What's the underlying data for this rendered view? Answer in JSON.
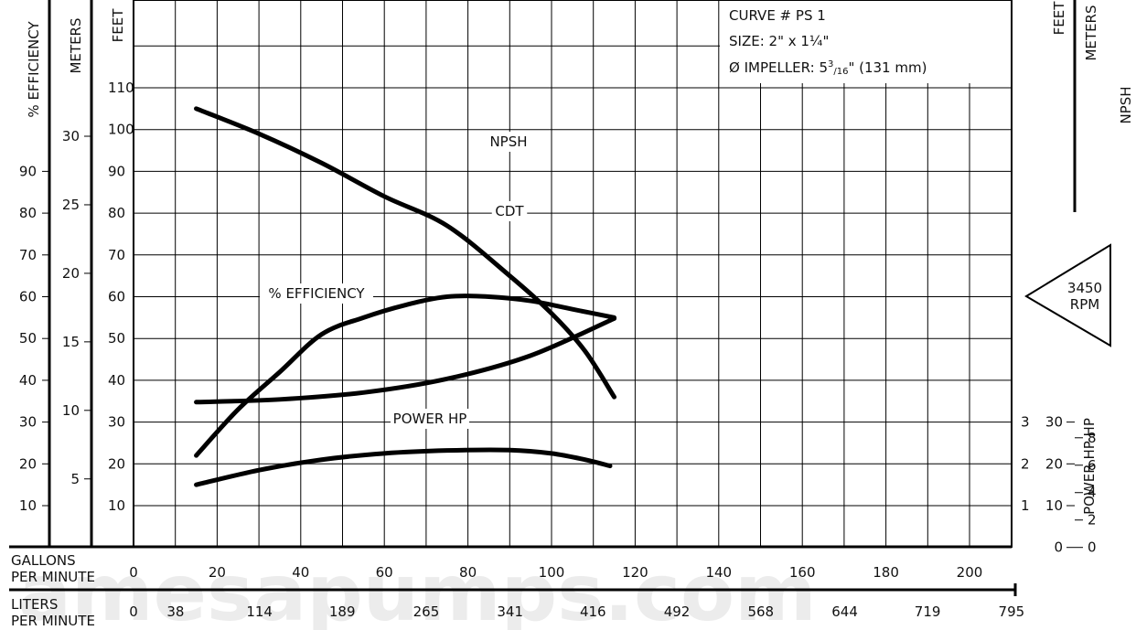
{
  "watermark": "amesapumps.com",
  "chart_data": {
    "type": "line",
    "info": {
      "curve": "CURVE # PS 1",
      "size": "SIZE: 2\" x 1¼\"",
      "impeller_prefix": "Ø IMPELLER: 5",
      "impeller_sup": "3",
      "impeller_sub": "16",
      "impeller_suffix": "\" (131 mm)"
    },
    "rpm": [
      "3450",
      "RPM"
    ],
    "axes": {
      "efficiency_label": "% EFFICIENCY",
      "meters_label": "METERS",
      "feet_label": "FEET",
      "npsh_feet_label": "FEET",
      "npsh_meters_label": "METERS",
      "npsh_label": "NPSH",
      "power_label": "POWER HP HP",
      "gpm_label": [
        "GALLONS",
        "PER MINUTE"
      ],
      "lpm_label": [
        "LITERS",
        "PER MINUTE"
      ]
    },
    "efficiency_ticks": [
      "90",
      "80",
      "70",
      "60",
      "50",
      "40",
      "30",
      "20",
      "10"
    ],
    "meters_ticks": [
      "30",
      "25",
      "20",
      "15",
      "10",
      "5"
    ],
    "feet_ticks": [
      "110",
      "100",
      "90",
      "80",
      "70",
      "60",
      "50",
      "40",
      "30",
      "20",
      "10"
    ],
    "npsh_feet_ticks": [
      "30",
      "20",
      "10",
      "0"
    ],
    "npsh_meters_ticks": [
      "8",
      "6",
      "4",
      "2",
      "0"
    ],
    "power_ticks": [
      "3",
      "2",
      "1"
    ],
    "gpm_ticks": [
      "0",
      "20",
      "40",
      "60",
      "80",
      "100",
      "120",
      "140",
      "160",
      "180",
      "200"
    ],
    "lpm_ticks": [
      "0",
      "38",
      "114",
      "189",
      "265",
      "341",
      "416",
      "492",
      "568",
      "644",
      "719",
      "795"
    ],
    "xlim": [
      0,
      210
    ],
    "ylim_feet": [
      0,
      120
    ],
    "series": [
      {
        "name": "CDT",
        "unit": "feet",
        "x": [
          15,
          30,
          45,
          60,
          75,
          90,
          100,
          108,
          115
        ],
        "y": [
          105,
          99,
          92,
          84,
          77,
          65,
          56,
          47,
          36
        ]
      },
      {
        "name": "% EFFICIENCY",
        "unit": "percent",
        "x": [
          15,
          25,
          35,
          45,
          55,
          65,
          75,
          85,
          95,
          105,
          115
        ],
        "y": [
          22,
          33,
          42,
          51,
          55,
          58,
          60,
          60,
          59,
          57,
          55
        ]
      },
      {
        "name": "NPSH",
        "unit": "feet",
        "x": [
          15,
          35,
          55,
          75,
          95,
          115
        ],
        "y": [
          10.6,
          10.8,
          11.3,
          12.3,
          14,
          16.7
        ]
      },
      {
        "name": "POWER HP",
        "unit": "hp",
        "x": [
          15,
          30,
          45,
          60,
          75,
          90,
          100,
          108,
          114
        ],
        "y": [
          1.5,
          1.85,
          2.1,
          2.25,
          2.32,
          2.33,
          2.25,
          2.1,
          1.95
        ]
      }
    ]
  }
}
